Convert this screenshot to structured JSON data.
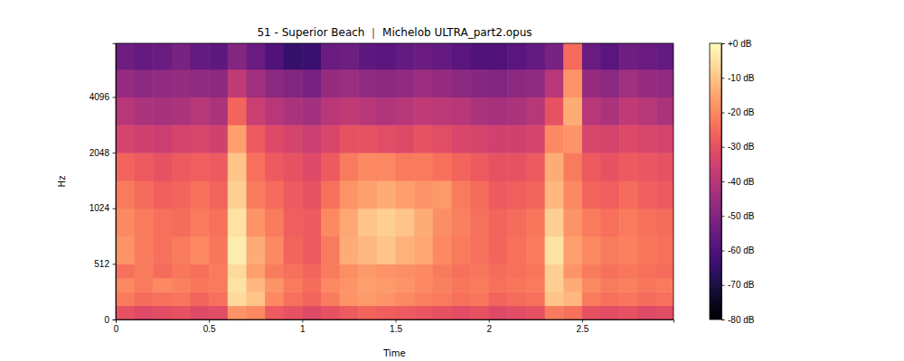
{
  "chart_data": {
    "type": "heatmap",
    "title": "51 - Superior Beach ｜ Michelob ULTRA_part2.opus",
    "x_label": "Time",
    "y_label": "Hz",
    "xlim": [
      0,
      2.99
    ],
    "ylim": [
      0,
      8000
    ],
    "xticks": [
      0,
      0.5,
      1,
      1.5,
      2,
      2.5
    ],
    "yticks": [
      0,
      512,
      1024,
      2048,
      4096
    ],
    "x_edges": [
      0,
      0.1,
      0.2,
      0.3,
      0.4,
      0.5,
      0.6,
      0.7,
      0.8,
      0.9,
      1.0,
      1.1,
      1.2,
      1.3,
      1.4,
      1.5,
      1.6,
      1.7,
      1.8,
      1.9,
      2.0,
      2.1,
      2.2,
      2.3,
      2.4,
      2.5,
      2.6,
      2.7,
      2.8,
      2.9,
      2.99
    ],
    "y_edges": [
      0,
      128,
      256,
      384,
      512,
      724,
      1024,
      1448,
      2048,
      2896,
      4096,
      5793,
      8000
    ],
    "values": [
      [
        -30,
        -32,
        -31,
        -30,
        -32,
        -31,
        -18,
        -20,
        -28,
        -30,
        -32,
        -30,
        -28,
        -26,
        -27,
        -28,
        -29,
        -30,
        -31,
        -30,
        -32,
        -31,
        -30,
        -22,
        -24,
        -30,
        -31,
        -30,
        -32,
        -31
      ],
      [
        -22,
        -25,
        -24,
        -23,
        -26,
        -24,
        -6,
        -10,
        -20,
        -24,
        -26,
        -22,
        -18,
        -17,
        -18,
        -20,
        -21,
        -22,
        -24,
        -23,
        -26,
        -25,
        -24,
        -10,
        -12,
        -22,
        -24,
        -23,
        -25,
        -24
      ],
      [
        -20,
        -22,
        -20,
        -21,
        -23,
        -22,
        -5,
        -12,
        -18,
        -22,
        -25,
        -20,
        -18,
        -16,
        -17,
        -18,
        -20,
        -21,
        -23,
        -22,
        -24,
        -23,
        -22,
        -8,
        -14,
        -20,
        -22,
        -21,
        -23,
        -22
      ],
      [
        -24,
        -22,
        -25,
        -23,
        -24,
        -22,
        -6,
        -16,
        -22,
        -24,
        -26,
        -22,
        -19,
        -17,
        -18,
        -19,
        -20,
        -22,
        -24,
        -23,
        -25,
        -24,
        -23,
        -8,
        -18,
        -22,
        -24,
        -23,
        -24,
        -25
      ],
      [
        -18,
        -22,
        -24,
        -22,
        -20,
        -23,
        -3,
        -14,
        -20,
        -26,
        -28,
        -22,
        -14,
        -12,
        -10,
        -13,
        -15,
        -20,
        -22,
        -24,
        -26,
        -24,
        -22,
        -5,
        -16,
        -20,
        -22,
        -21,
        -23,
        -24
      ],
      [
        -20,
        -22,
        -24,
        -25,
        -22,
        -24,
        -5,
        -18,
        -22,
        -27,
        -28,
        -20,
        -15,
        -10,
        -8,
        -10,
        -14,
        -19,
        -21,
        -24,
        -26,
        -25,
        -23,
        -8,
        -18,
        -22,
        -24,
        -22,
        -24,
        -25
      ],
      [
        -22,
        -25,
        -27,
        -26,
        -24,
        -26,
        -8,
        -22,
        -25,
        -28,
        -30,
        -24,
        -18,
        -16,
        -14,
        -16,
        -18,
        -17,
        -22,
        -25,
        -28,
        -27,
        -26,
        -12,
        -20,
        -26,
        -27,
        -25,
        -27,
        -28
      ],
      [
        -26,
        -28,
        -30,
        -28,
        -27,
        -28,
        -10,
        -24,
        -28,
        -30,
        -32,
        -28,
        -22,
        -20,
        -20,
        -22,
        -22,
        -24,
        -26,
        -28,
        -30,
        -30,
        -28,
        -14,
        -22,
        -28,
        -30,
        -28,
        -29,
        -30
      ],
      [
        -34,
        -35,
        -36,
        -34,
        -33,
        -35,
        -16,
        -28,
        -32,
        -34,
        -36,
        -33,
        -30,
        -30,
        -31,
        -32,
        -30,
        -31,
        -33,
        -34,
        -35,
        -35,
        -34,
        -20,
        -18,
        -33,
        -34,
        -32,
        -33,
        -34
      ],
      [
        -40,
        -42,
        -43,
        -42,
        -40,
        -42,
        -26,
        -36,
        -40,
        -42,
        -44,
        -40,
        -38,
        -40,
        -41,
        -40,
        -38,
        -39,
        -40,
        -42,
        -43,
        -42,
        -40,
        -30,
        -14,
        -40,
        -42,
        -38,
        -40,
        -42
      ],
      [
        -46,
        -48,
        -47,
        -46,
        -47,
        -48,
        -38,
        -44,
        -48,
        -50,
        -52,
        -46,
        -45,
        -47,
        -48,
        -47,
        -45,
        -46,
        -48,
        -49,
        -50,
        -48,
        -47,
        -40,
        -18,
        -46,
        -48,
        -44,
        -46,
        -47
      ],
      [
        -54,
        -56,
        -55,
        -52,
        -56,
        -57,
        -50,
        -55,
        -60,
        -65,
        -64,
        -55,
        -54,
        -57,
        -58,
        -56,
        -55,
        -56,
        -58,
        -60,
        -60,
        -58,
        -56,
        -52,
        -25,
        -55,
        -58,
        -54,
        -55,
        -56
      ]
    ],
    "colorbar": {
      "range": [
        -80,
        0
      ],
      "ticks": [
        {
          "value": 0,
          "label": "+0 dB"
        },
        {
          "value": -10,
          "label": "-10 dB"
        },
        {
          "value": -20,
          "label": "-20 dB"
        },
        {
          "value": -30,
          "label": "-30 dB"
        },
        {
          "value": -40,
          "label": "-40 dB"
        },
        {
          "value": -50,
          "label": "-50 dB"
        },
        {
          "value": -60,
          "label": "-60 dB"
        },
        {
          "value": -70,
          "label": "-70 dB"
        },
        {
          "value": -80,
          "label": "-80 dB"
        }
      ]
    }
  }
}
